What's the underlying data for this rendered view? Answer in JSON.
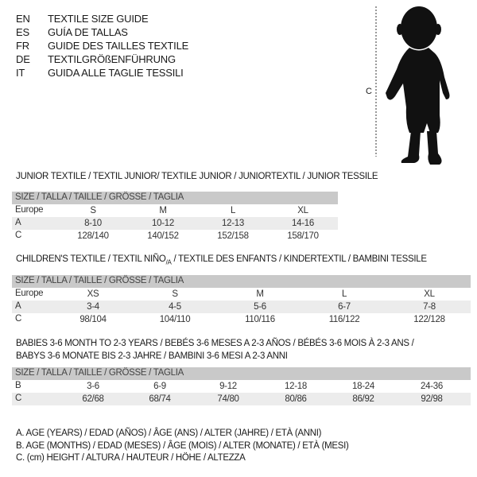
{
  "languages": [
    {
      "code": "EN",
      "title": "TEXTILE SIZE GUIDE"
    },
    {
      "code": "ES",
      "title": "GUÍA DE TALLAS"
    },
    {
      "code": "FR",
      "title": "GUIDE DES TAILLES TEXTILE"
    },
    {
      "code": "DE",
      "title": "TEXTILGRÖßENFÜHRUNG"
    },
    {
      "code": "IT",
      "title": "GUIDA ALLE TAGLIE TESSILI"
    }
  ],
  "figure": {
    "measure_label": "C"
  },
  "size_header": "SIZE / TALLA / TAILLE / GRÖSSE / TAGLIA",
  "junior": {
    "heading": "JUNIOR TEXTILE / TEXTIL JUNIOR/ TEXTILE JUNIOR / JUNIORTEXTIL / JUNIOR TESSILE",
    "rows": [
      {
        "label": "Europe",
        "cells": [
          "S",
          "M",
          "L",
          "XL"
        ]
      },
      {
        "label": "A",
        "cells": [
          "8-10",
          "10-12",
          "12-13",
          "14-16"
        ]
      },
      {
        "label": "C",
        "cells": [
          "128/140",
          "140/152",
          "152/158",
          "158/170"
        ]
      }
    ]
  },
  "children": {
    "heading_part1": "CHILDREN'S TEXTILE / TEXTIL NIÑO",
    "heading_sub": "/A",
    "heading_part2": " / TEXTILE DES ENFANTS / KINDERTEXTIL / BAMBINI TESSILE",
    "rows": [
      {
        "label": "Europe",
        "cells": [
          "XS",
          "S",
          "M",
          "L",
          "XL"
        ]
      },
      {
        "label": "A",
        "cells": [
          "3-4",
          "4-5",
          "5-6",
          "6-7",
          "7-8"
        ]
      },
      {
        "label": "C",
        "cells": [
          "98/104",
          "104/110",
          "110/116",
          "116/122",
          "122/128"
        ]
      }
    ]
  },
  "babies": {
    "heading_line1": "BABIES 3-6 MONTH TO 2-3 YEARS / BEBÉS 3-6 MESES A 2-3 AÑOS / BÉBÉS 3-6 MOIS À 2-3 ANS /",
    "heading_line2": "BABYS 3-6 MONATE BIS 2-3 JAHRE / BAMBINI 3-6 MESI A 2-3 ANNI",
    "rows": [
      {
        "label": "B",
        "cells": [
          "3-6",
          "6-9",
          "9-12",
          "12-18",
          "18-24",
          "24-36"
        ]
      },
      {
        "label": "C",
        "cells": [
          "62/68",
          "68/74",
          "74/80",
          "80/86",
          "86/92",
          "92/98"
        ]
      }
    ]
  },
  "legend": [
    "A. AGE (YEARS) / EDAD (AÑOS) / ÂGE (ANS) / ALTER (JAHRE) / ETÀ (ANNI)",
    "B. AGE (MONTHS) / EDAD (MESES) / ÂGE (MOIS) / ALTER (MONATE) / ETÀ (MESI)",
    "C. (cm) HEIGHT / ALTURA / HAUTEUR / HÖHE / ALTEZZA"
  ],
  "colors": {
    "header_bg": "#c9c9c9",
    "alt_row_bg": "#ececec",
    "silhouette": "#111111"
  }
}
